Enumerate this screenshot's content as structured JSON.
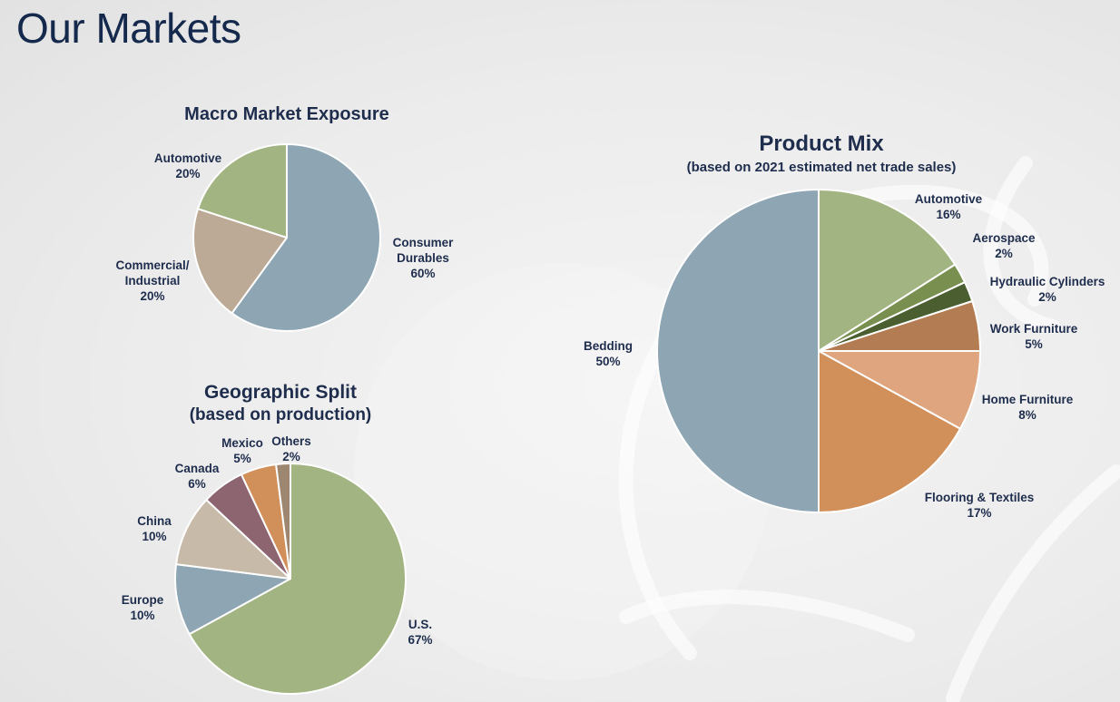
{
  "page": {
    "title": "Our Markets"
  },
  "chart_data": [
    {
      "type": "pie",
      "title": "Macro Market Exposure",
      "subtitle": "",
      "slices": [
        {
          "label_lines": [
            "Consumer",
            "Durables"
          ],
          "value": 60,
          "value_label": "60%",
          "color": "#8ea5b3"
        },
        {
          "label_lines": [
            "Commercial/",
            "Industrial"
          ],
          "value": 20,
          "value_label": "20%",
          "color": "#bcaa96"
        },
        {
          "label_lines": [
            "Automotive"
          ],
          "value": 20,
          "value_label": "20%",
          "color": "#a3b483"
        }
      ]
    },
    {
      "type": "pie",
      "title": "Geographic Split",
      "subtitle": "(based on production)",
      "slices": [
        {
          "label_lines": [
            "U.S."
          ],
          "value": 67,
          "value_label": "67%",
          "color": "#a3b483"
        },
        {
          "label_lines": [
            "Europe"
          ],
          "value": 10,
          "value_label": "10%",
          "color": "#8ea5b3"
        },
        {
          "label_lines": [
            "China"
          ],
          "value": 10,
          "value_label": "10%",
          "color": "#c7baa9"
        },
        {
          "label_lines": [
            "Canada"
          ],
          "value": 6,
          "value_label": "6%",
          "color": "#8c6570"
        },
        {
          "label_lines": [
            "Mexico"
          ],
          "value": 5,
          "value_label": "5%",
          "color": "#d18f5a"
        },
        {
          "label_lines": [
            "Others"
          ],
          "value": 2,
          "value_label": "2%",
          "color": "#9d8770"
        }
      ]
    },
    {
      "type": "pie",
      "title": "Product Mix",
      "subtitle": "(based on 2021 estimated net trade sales)",
      "slices": [
        {
          "label_lines": [
            "Automotive"
          ],
          "value": 16,
          "value_label": "16%",
          "color": "#a3b483"
        },
        {
          "label_lines": [
            "Aerospace"
          ],
          "value": 2,
          "value_label": "2%",
          "color": "#788f4f"
        },
        {
          "label_lines": [
            "Hydraulic Cylinders"
          ],
          "value": 2,
          "value_label": "2%",
          "color": "#4a5e30"
        },
        {
          "label_lines": [
            "Work Furniture"
          ],
          "value": 5,
          "value_label": "5%",
          "color": "#b37c52"
        },
        {
          "label_lines": [
            "Home Furniture"
          ],
          "value": 8,
          "value_label": "8%",
          "color": "#dea57e"
        },
        {
          "label_lines": [
            "Flooring & Textiles"
          ],
          "value": 17,
          "value_label": "17%",
          "color": "#d18f5a"
        },
        {
          "label_lines": [
            "Bedding"
          ],
          "value": 50,
          "value_label": "50%",
          "color": "#8ea5b3"
        }
      ]
    }
  ]
}
